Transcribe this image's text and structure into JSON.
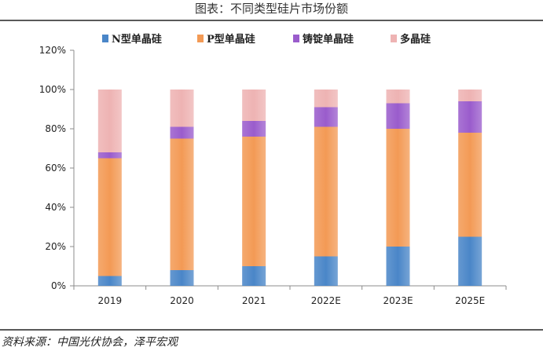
{
  "title": "图表：不同类型硅片市场份额",
  "source": "资料来源：中国光伏协会，泽平宏观",
  "colors": {
    "N型单晶硅": "#4a86c8",
    "P型单晶硅": "#f39a55",
    "铸锭单晶硅": "#9a5ccc",
    "多晶硅": "#eeb3b3"
  },
  "chart_data": {
    "type": "bar",
    "stacked": true,
    "categories": [
      "2019",
      "2020",
      "2021",
      "2022E",
      "2023E",
      "2025E"
    ],
    "series": [
      {
        "name": "N型单晶硅",
        "values": [
          5,
          8,
          10,
          15,
          20,
          25
        ]
      },
      {
        "name": "P型单晶硅",
        "values": [
          60,
          67,
          66,
          66,
          60,
          53
        ]
      },
      {
        "name": "铸锭单晶硅",
        "values": [
          3,
          6,
          8,
          10,
          13,
          16
        ]
      },
      {
        "name": "多晶硅",
        "values": [
          32,
          19,
          16,
          9,
          7,
          6
        ]
      }
    ],
    "ylim": [
      0,
      120
    ],
    "yticks": [
      "0%",
      "20%",
      "40%",
      "60%",
      "80%",
      "100%",
      "120%"
    ],
    "legend_position": "top",
    "grid": false
  }
}
